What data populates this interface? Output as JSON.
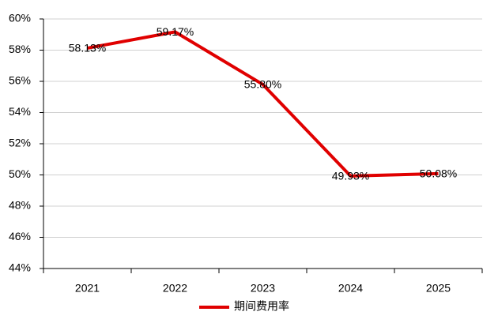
{
  "chart_data": {
    "type": "line",
    "categories": [
      "2021",
      "2022",
      "2023",
      "2024",
      "2025"
    ],
    "series": [
      {
        "name": "期间费用率",
        "color": "#e00000",
        "values": [
          58.13,
          59.17,
          55.8,
          49.93,
          50.08
        ],
        "value_labels": [
          "58.13%",
          "59.17%",
          "55.80%",
          "49.93%",
          "50.08%"
        ]
      }
    ],
    "ylim": [
      44,
      60
    ],
    "yticks": [
      {
        "value": 44,
        "label": "44%"
      },
      {
        "value": 46,
        "label": "46%"
      },
      {
        "value": 48,
        "label": "48%"
      },
      {
        "value": 50,
        "label": "50%"
      },
      {
        "value": 52,
        "label": "52%"
      },
      {
        "value": 54,
        "label": "54%"
      },
      {
        "value": 56,
        "label": "56%"
      },
      {
        "value": 58,
        "label": "58%"
      },
      {
        "value": 60,
        "label": "60%"
      }
    ],
    "grid": true,
    "legend": "bottom"
  }
}
